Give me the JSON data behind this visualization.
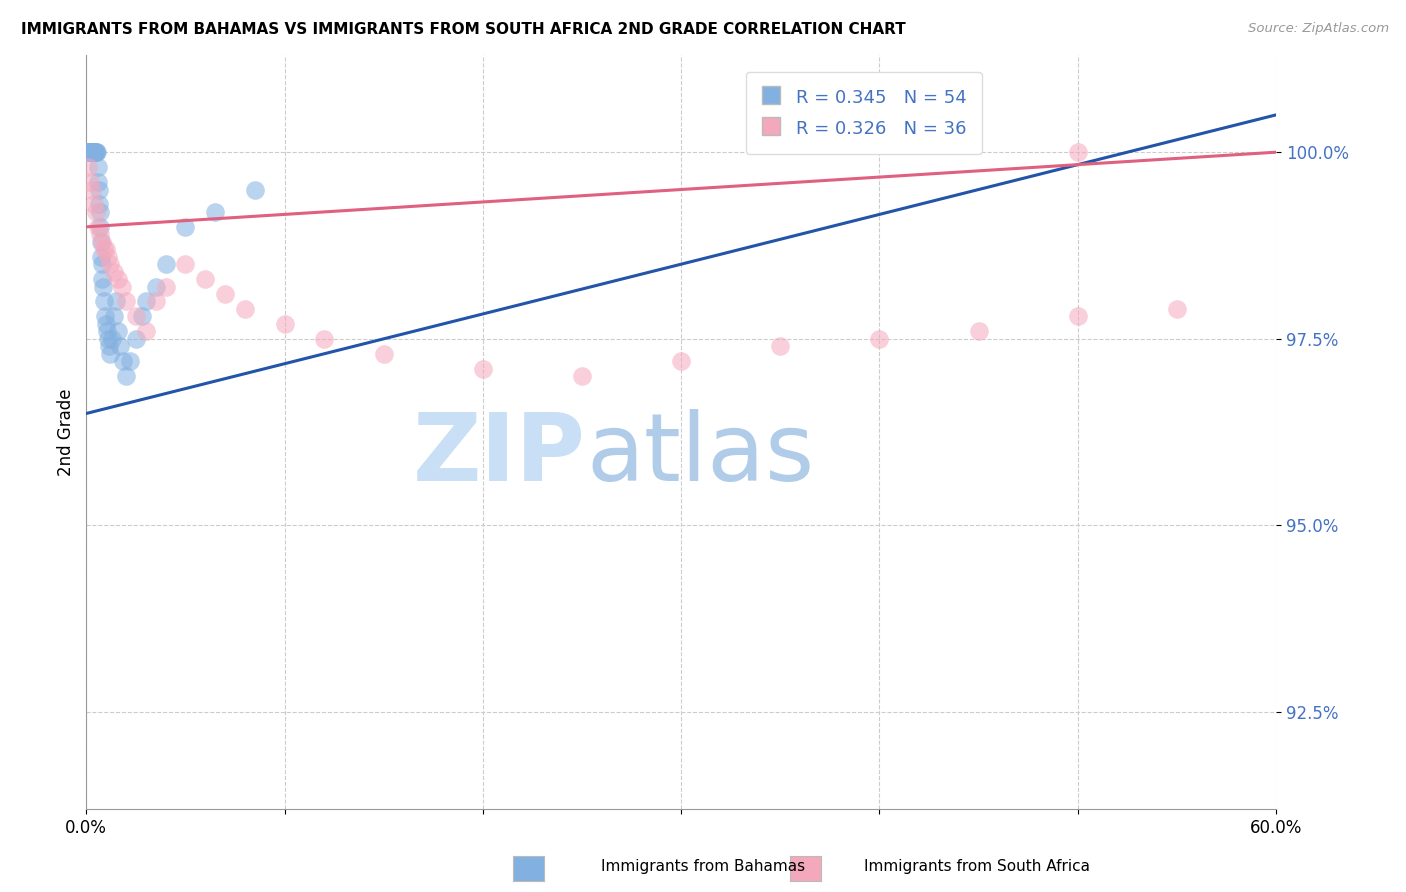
{
  "title": "IMMIGRANTS FROM BAHAMAS VS IMMIGRANTS FROM SOUTH AFRICA 2ND GRADE CORRELATION CHART",
  "source": "Source: ZipAtlas.com",
  "ylabel": "2nd Grade",
  "y_ticks": [
    92.5,
    95.0,
    97.5,
    100.0
  ],
  "y_tick_labels": [
    "92.5%",
    "95.0%",
    "97.5%",
    "100.0%"
  ],
  "xlim": [
    0.0,
    60.0
  ],
  "ylim": [
    91.2,
    101.3
  ],
  "r_bahamas": 0.345,
  "n_bahamas": 54,
  "r_south_africa": 0.326,
  "n_south_africa": 36,
  "color_bahamas": "#82b0e0",
  "color_south_africa": "#f4a8bc",
  "trendline_bahamas": "#2255aa",
  "trendline_south_africa": "#e06080",
  "watermark_zip": "ZIP",
  "watermark_atlas": "atlas",
  "watermark_color_zip": "#c8dff5",
  "watermark_color_atlas": "#b0cce8",
  "legend_r1": "R = 0.345",
  "legend_n1": "N = 54",
  "legend_r2": "R = 0.326",
  "legend_n2": "N = 36",
  "bahamas_x": [
    0.05,
    0.08,
    0.1,
    0.12,
    0.15,
    0.18,
    0.2,
    0.22,
    0.25,
    0.28,
    0.3,
    0.32,
    0.35,
    0.38,
    0.4,
    0.42,
    0.45,
    0.48,
    0.5,
    0.55,
    0.58,
    0.6,
    0.62,
    0.65,
    0.68,
    0.7,
    0.72,
    0.75,
    0.78,
    0.8,
    0.85,
    0.9,
    0.95,
    1.0,
    1.05,
    1.1,
    1.15,
    1.2,
    1.3,
    1.4,
    1.5,
    1.6,
    1.7,
    1.85,
    2.0,
    2.2,
    2.5,
    2.8,
    3.0,
    3.5,
    4.0,
    5.0,
    6.5,
    8.5
  ],
  "bahamas_y": [
    100.0,
    100.0,
    100.0,
    100.0,
    100.0,
    100.0,
    100.0,
    100.0,
    100.0,
    100.0,
    100.0,
    100.0,
    100.0,
    100.0,
    100.0,
    100.0,
    100.0,
    100.0,
    100.0,
    100.0,
    99.8,
    99.6,
    99.5,
    99.3,
    99.2,
    99.0,
    98.8,
    98.6,
    98.5,
    98.3,
    98.2,
    98.0,
    97.8,
    97.7,
    97.6,
    97.5,
    97.4,
    97.3,
    97.5,
    97.8,
    98.0,
    97.6,
    97.4,
    97.2,
    97.0,
    97.2,
    97.5,
    97.8,
    98.0,
    98.2,
    98.5,
    99.0,
    99.2,
    99.5
  ],
  "bahamas_trendline_x": [
    0.0,
    60.0
  ],
  "bahamas_trendline_y": [
    96.5,
    100.5
  ],
  "sa_x": [
    0.1,
    0.2,
    0.3,
    0.4,
    0.5,
    0.6,
    0.7,
    0.8,
    0.9,
    1.0,
    1.1,
    1.2,
    1.4,
    1.6,
    1.8,
    2.0,
    2.5,
    3.0,
    3.5,
    4.0,
    5.0,
    6.0,
    7.0,
    8.0,
    10.0,
    12.0,
    15.0,
    20.0,
    25.0,
    30.0,
    35.0,
    40.0,
    45.0,
    50.0,
    55.0,
    50.0
  ],
  "sa_y": [
    99.8,
    99.6,
    99.5,
    99.3,
    99.2,
    99.0,
    98.9,
    98.8,
    98.7,
    98.7,
    98.6,
    98.5,
    98.4,
    98.3,
    98.2,
    98.0,
    97.8,
    97.6,
    98.0,
    98.2,
    98.5,
    98.3,
    98.1,
    97.9,
    97.7,
    97.5,
    97.3,
    97.1,
    97.0,
    97.2,
    97.4,
    97.5,
    97.6,
    97.8,
    97.9,
    100.0
  ],
  "sa_trendline_x": [
    0.0,
    60.0
  ],
  "sa_trendline_y": [
    99.0,
    100.0
  ]
}
